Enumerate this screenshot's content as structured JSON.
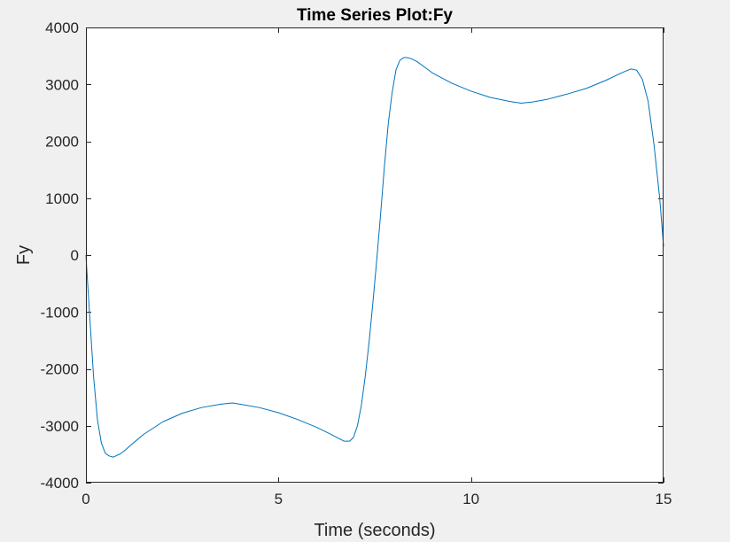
{
  "chart_data": {
    "type": "line",
    "title": "Time Series Plot:Fy",
    "xlabel": "Time (seconds)",
    "ylabel": "Fy",
    "xlim": [
      0,
      15
    ],
    "ylim": [
      -4000,
      4000
    ],
    "xticks": [
      0,
      5,
      10,
      15
    ],
    "xtick_labels": [
      "0",
      "5",
      "10",
      "15"
    ],
    "yticks": [
      -4000,
      -3000,
      -2000,
      -1000,
      0,
      1000,
      2000,
      3000,
      4000
    ],
    "ytick_labels": [
      "-4000",
      "-3000",
      "-2000",
      "-1000",
      "0",
      "1000",
      "2000",
      "3000",
      "4000"
    ],
    "grid": false,
    "legend": "none",
    "series": [
      {
        "color": "#0072bd",
        "x": [
          0,
          0.05,
          0.1,
          0.2,
          0.3,
          0.4,
          0.5,
          0.6,
          0.7,
          0.75,
          0.8,
          0.85,
          0.9,
          1.0,
          1.2,
          1.5,
          2.0,
          2.5,
          3.0,
          3.5,
          3.8,
          4.0,
          4.5,
          5.0,
          5.5,
          6.0,
          6.3,
          6.5,
          6.7,
          6.85,
          6.95,
          7.05,
          7.15,
          7.25,
          7.35,
          7.45,
          7.55,
          7.65,
          7.75,
          7.85,
          7.95,
          8.05,
          8.15,
          8.25,
          8.35,
          8.45,
          8.6,
          8.8,
          9.0,
          9.5,
          10.0,
          10.5,
          11.0,
          11.3,
          11.6,
          12.0,
          12.5,
          13.0,
          13.5,
          13.9,
          14.15,
          14.3,
          14.45,
          14.6,
          14.75,
          14.9,
          15.0
        ],
        "y": [
          0,
          -550,
          -1100,
          -2150,
          -2900,
          -3300,
          -3480,
          -3530,
          -3550,
          -3540,
          -3520,
          -3510,
          -3490,
          -3440,
          -3320,
          -3150,
          -2930,
          -2780,
          -2680,
          -2620,
          -2600,
          -2620,
          -2680,
          -2770,
          -2890,
          -3030,
          -3130,
          -3200,
          -3270,
          -3270,
          -3200,
          -3000,
          -2650,
          -2150,
          -1550,
          -850,
          -100,
          700,
          1550,
          2300,
          2850,
          3250,
          3420,
          3470,
          3470,
          3450,
          3400,
          3300,
          3200,
          3020,
          2880,
          2770,
          2700,
          2670,
          2690,
          2740,
          2830,
          2930,
          3070,
          3200,
          3270,
          3250,
          3090,
          2700,
          1950,
          1000,
          150
        ]
      }
    ]
  }
}
